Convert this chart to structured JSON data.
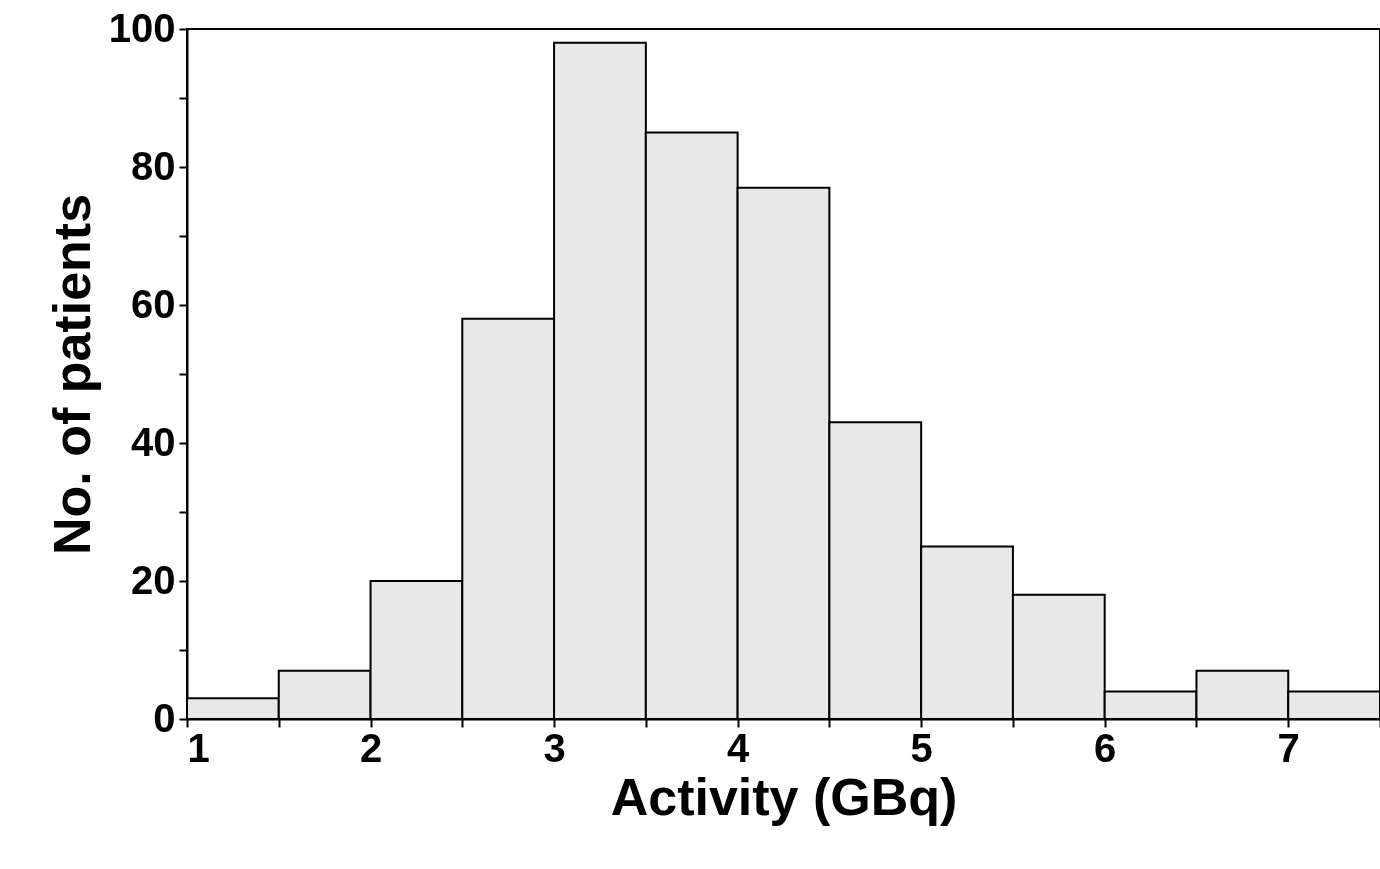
{
  "chart_data": {
    "type": "histogram",
    "xlabel": "Activity (GBq)",
    "ylabel": "No. of patients",
    "bins": [
      1,
      1.5,
      2,
      2.5,
      3,
      3.5,
      4,
      4.5,
      5,
      5.5,
      6,
      6.5,
      7,
      7.5
    ],
    "values": [
      3,
      7,
      20,
      58,
      98,
      85,
      77,
      43,
      25,
      18,
      4,
      7,
      4
    ],
    "color": "#e8e8e8",
    "xlim": [
      1,
      7.5
    ],
    "ylim": [
      0,
      100
    ],
    "xticks": [
      1,
      {
        "value": 1.5,
        "label": null
      },
      2,
      {
        "value": 2.5,
        "label": null
      },
      3,
      {
        "value": 3.5,
        "label": null
      },
      4,
      {
        "value": 4.5,
        "label": null
      },
      5,
      {
        "value": 5.5,
        "label": null
      },
      6,
      {
        "value": 6.5,
        "label": null
      },
      7,
      {
        "value": 7.5,
        "label": null
      }
    ],
    "yticks": [
      0,
      {
        "value": 10,
        "label": null
      },
      20,
      {
        "value": 30,
        "label": null
      },
      40,
      {
        "value": 50,
        "label": null
      },
      60,
      {
        "value": 70,
        "label": null
      },
      80,
      {
        "value": 90,
        "label": null
      },
      100
    ],
    "grid": false
  }
}
